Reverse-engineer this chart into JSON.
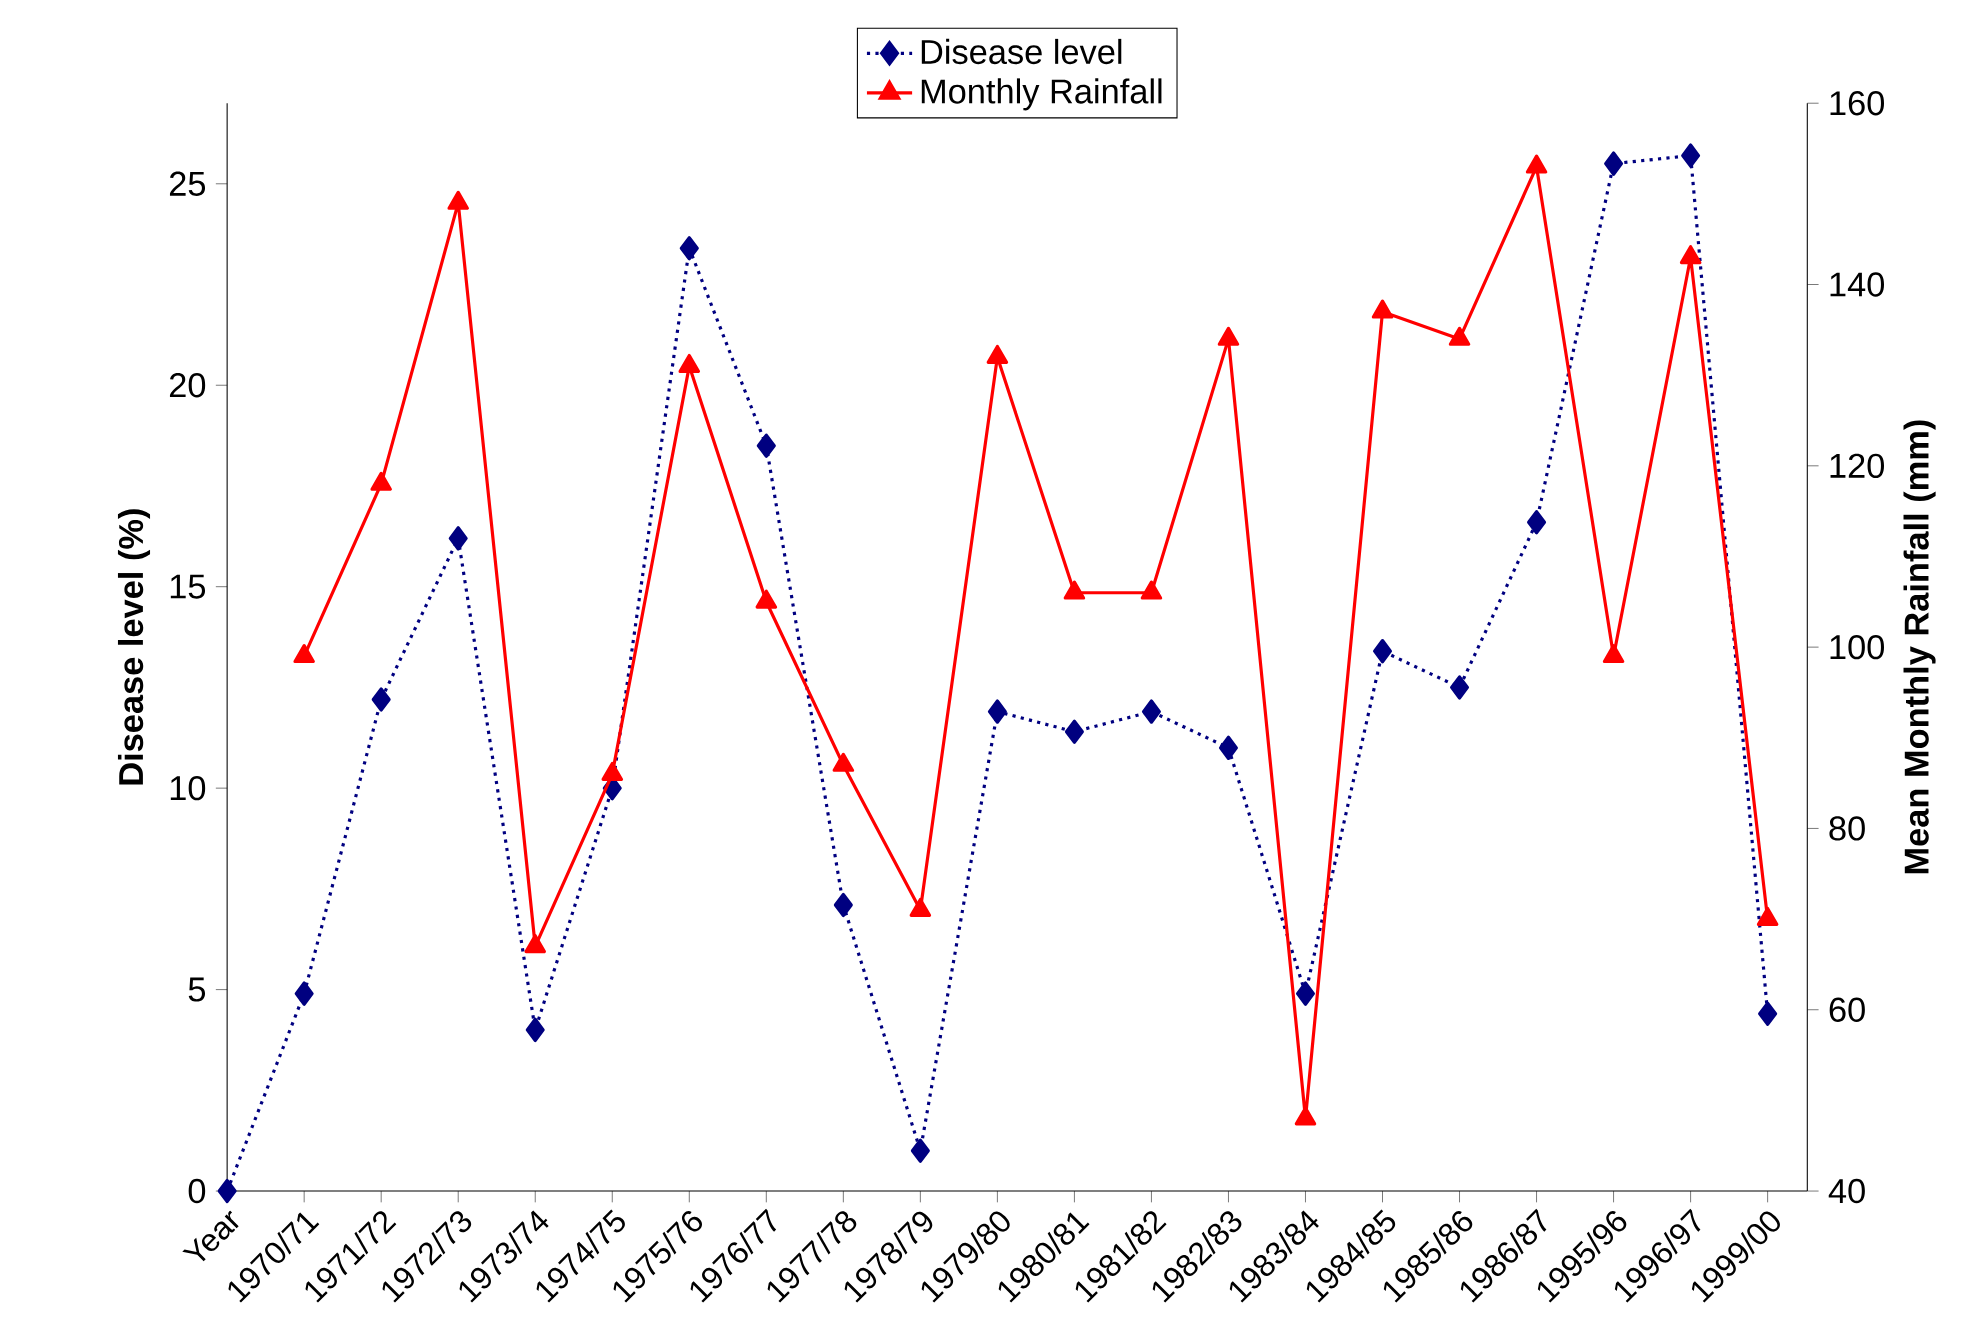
{
  "chart_data": {
    "type": "line",
    "xlabel": null,
    "ylabel": "Disease level (%)",
    "y2label": "Mean Monthly Rainfall (mm)",
    "categories": [
      "Year",
      "1970/71",
      "1971/72",
      "1972/73",
      "1973/74",
      "1974/75",
      "1975/76",
      "1976/77",
      "1977/78",
      "1978/79",
      "1979/80",
      "1980/81",
      "1981/82",
      "1982/83",
      "1983/84",
      "1984/85",
      "1985/86",
      "1986/87",
      "1995/96",
      "1996/97",
      "1999/00"
    ],
    "series": [
      {
        "name": "Disease level",
        "color": "#000080",
        "marker": "diamond",
        "line_style": "dotted",
        "values": [
          0,
          4.9,
          12.2,
          16.2,
          4.0,
          10.0,
          23.4,
          18.5,
          7.1,
          1.0,
          11.9,
          11.4,
          11.9,
          11.0,
          4.9,
          13.4,
          12.5,
          16.6,
          25.5,
          25.7,
          4.4
        ]
      },
      {
        "name": "Monthly Rainfall",
        "color": "#ff0000",
        "marker": "triangle",
        "line_style": "solid",
        "axis": "y2",
        "values": [
          null,
          99,
          118,
          149,
          67,
          86,
          131,
          105,
          87,
          71,
          132,
          106,
          106,
          134,
          48,
          137,
          134,
          153,
          99,
          143,
          70
        ]
      }
    ],
    "ylim": [
      0,
      27
    ],
    "yticks": [
      0,
      5,
      10,
      15,
      20,
      25
    ],
    "y2lim": [
      40,
      160
    ],
    "y2ticks": [
      40,
      60,
      80,
      100,
      120,
      140,
      160
    ],
    "grid": false,
    "legend": "top"
  }
}
